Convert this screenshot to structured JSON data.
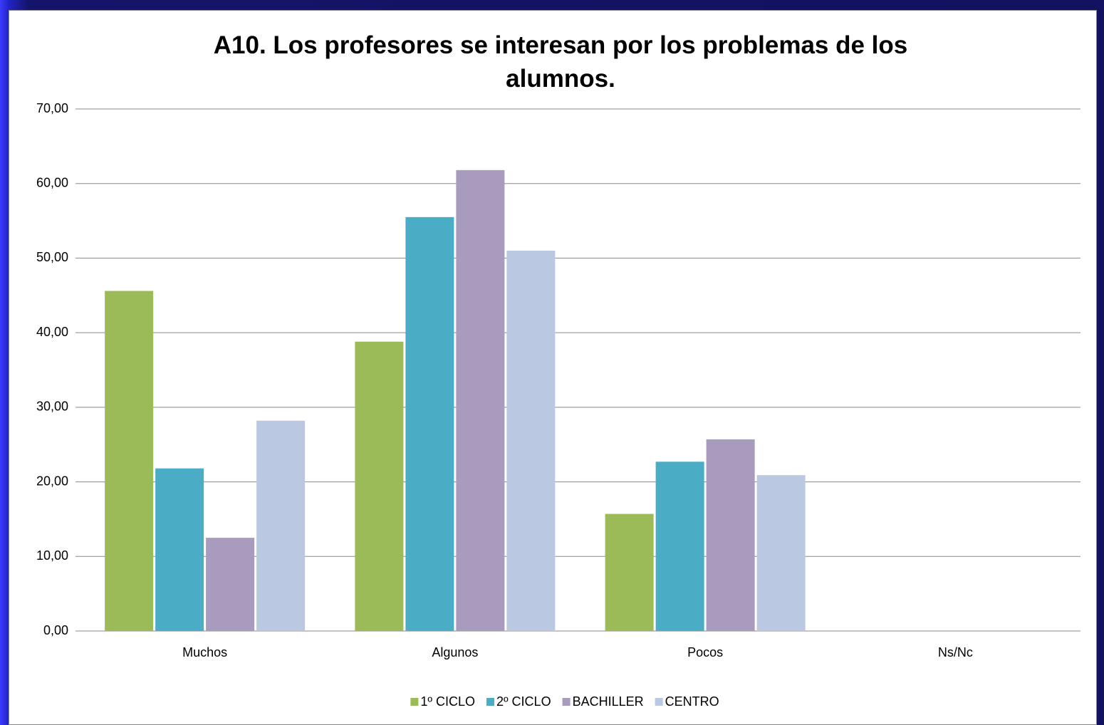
{
  "chart_data": {
    "type": "bar",
    "title": "A10. Los profesores se interesan por los problemas de los alumnos.",
    "categories": [
      "Muchos",
      "Algunos",
      "Pocos",
      "Ns/Nc"
    ],
    "series": [
      {
        "name": "1º CICLO",
        "color": "#9bbb59",
        "values": [
          45.6,
          38.8,
          15.7,
          0
        ]
      },
      {
        "name": "2º CICLO",
        "color": "#4bacc6",
        "values": [
          21.8,
          55.5,
          22.7,
          0
        ]
      },
      {
        "name": "BACHILLER",
        "color": "#a99bbd",
        "values": [
          12.5,
          61.8,
          25.7,
          0
        ]
      },
      {
        "name": "CENTRO",
        "color": "#bac8e1",
        "values": [
          28.2,
          51.0,
          20.9,
          0
        ]
      }
    ],
    "ylim": [
      0,
      70
    ],
    "yticks": [
      {
        "value": 0,
        "label": "0,00"
      },
      {
        "value": 10,
        "label": "10,00"
      },
      {
        "value": 20,
        "label": "20,00"
      },
      {
        "value": 30,
        "label": "30,00"
      },
      {
        "value": 40,
        "label": "40,00"
      },
      {
        "value": 50,
        "label": "50,00"
      },
      {
        "value": 60,
        "label": "60,00"
      },
      {
        "value": 70,
        "label": "70,00"
      }
    ],
    "grid": true,
    "legend": "bottom"
  }
}
